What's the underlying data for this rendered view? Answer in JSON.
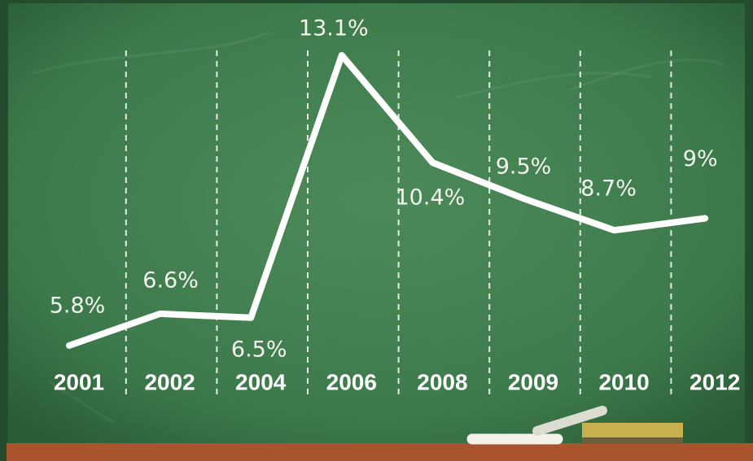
{
  "chart_data": {
    "type": "line",
    "categories": [
      "2001",
      "2002",
      "2004",
      "2006",
      "2008",
      "2009",
      "2010",
      "2012"
    ],
    "values": [
      5.8,
      6.6,
      6.5,
      13.1,
      10.4,
      9.5,
      8.7,
      9
    ],
    "value_labels": [
      "5.8%",
      "6.6%",
      "6.5%",
      "13.1%",
      "10.4%",
      "9.5%",
      "8.7%",
      "9%"
    ],
    "color": "#ffffff"
  }
}
